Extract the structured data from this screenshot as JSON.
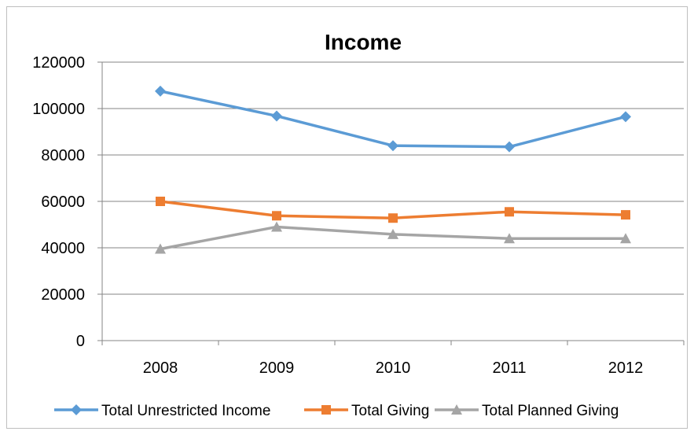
{
  "chart_data": {
    "type": "line",
    "title": "Income",
    "xlabel": "",
    "ylabel": "",
    "categories": [
      "2008",
      "2009",
      "2010",
      "2011",
      "2012"
    ],
    "ylim": [
      0,
      120000
    ],
    "yticks": [
      0,
      20000,
      40000,
      60000,
      80000,
      100000,
      120000
    ],
    "grid": true,
    "legend_position": "bottom",
    "series": [
      {
        "name": "Total Unrestricted Income",
        "values": [
          107500,
          96800,
          84000,
          83500,
          96500
        ],
        "color": "#5B9BD5",
        "marker": "diamond"
      },
      {
        "name": "Total Giving",
        "values": [
          60000,
          53800,
          52800,
          55500,
          54200
        ],
        "color": "#ED7D31",
        "marker": "square"
      },
      {
        "name": "Total Planned Giving",
        "values": [
          39500,
          49000,
          45800,
          44000,
          44000
        ],
        "color": "#A5A5A5",
        "marker": "triangle"
      }
    ]
  }
}
